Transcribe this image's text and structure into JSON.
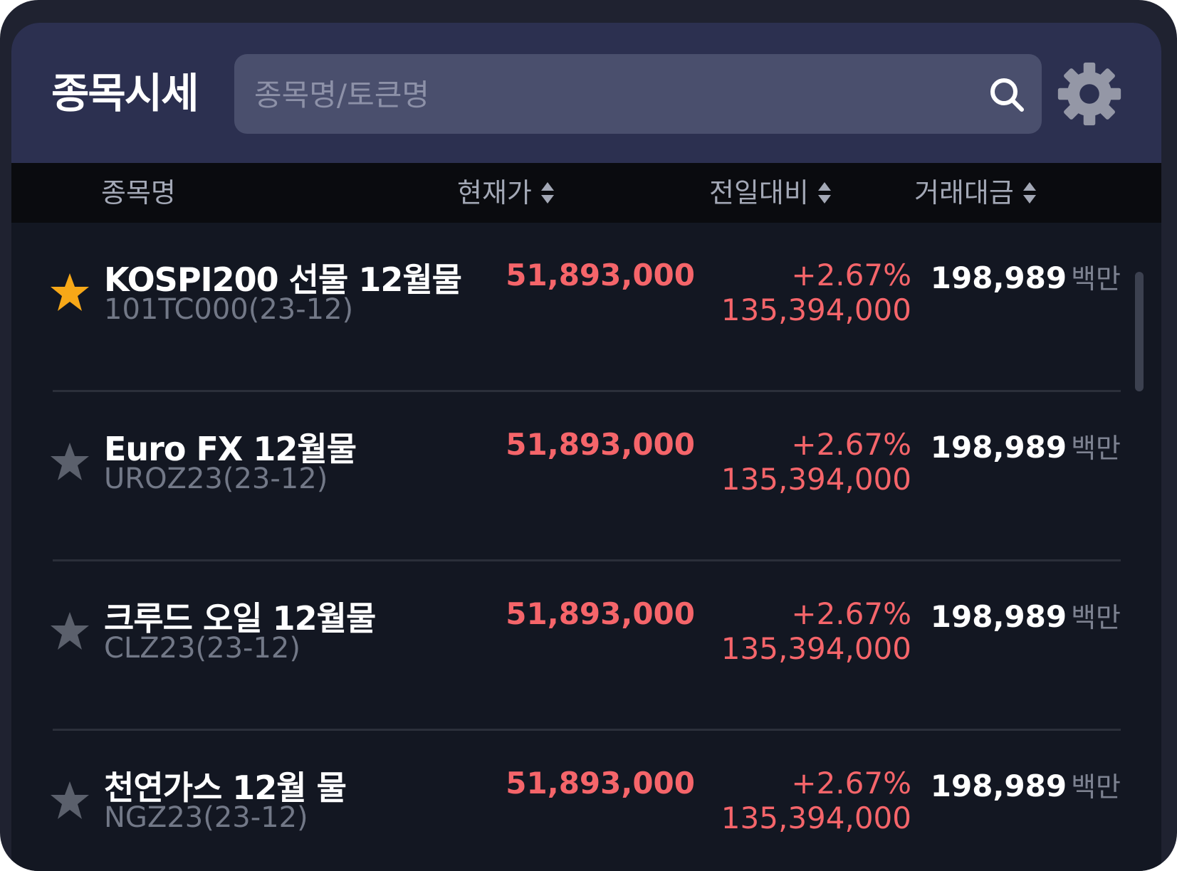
{
  "header": {
    "title": "종목시세",
    "search_placeholder": "종목명/토큰명",
    "search_value": ""
  },
  "columns": {
    "name": "종목명",
    "price": "현재가",
    "change": "전일대비",
    "volume": "거래대금"
  },
  "colors": {
    "up": "#f5656a",
    "star_active": "#f7a818",
    "star_inactive": "#5b606c",
    "header_bg": "#2c3050"
  },
  "rows": [
    {
      "favorite": true,
      "name": "KOSPI200 선물 12월물",
      "code": "101TC000(23-12)",
      "price": "51,893,000",
      "change_pct": "+2.67%",
      "change_amt": "135,394,000",
      "volume": "198,989",
      "volume_unit": "백만"
    },
    {
      "favorite": false,
      "name": "Euro FX 12월물",
      "code": "UROZ23(23-12)",
      "price": "51,893,000",
      "change_pct": "+2.67%",
      "change_amt": "135,394,000",
      "volume": "198,989",
      "volume_unit": "백만"
    },
    {
      "favorite": false,
      "name": "크루드 오일 12월물",
      "code": "CLZ23(23-12)",
      "price": "51,893,000",
      "change_pct": "+2.67%",
      "change_amt": "135,394,000",
      "volume": "198,989",
      "volume_unit": "백만"
    },
    {
      "favorite": false,
      "name": "천연가스 12월 물",
      "code": "NGZ23(23-12)",
      "price": "51,893,000",
      "change_pct": "+2.67%",
      "change_amt": "135,394,000",
      "volume": "198,989",
      "volume_unit": "백만"
    }
  ]
}
